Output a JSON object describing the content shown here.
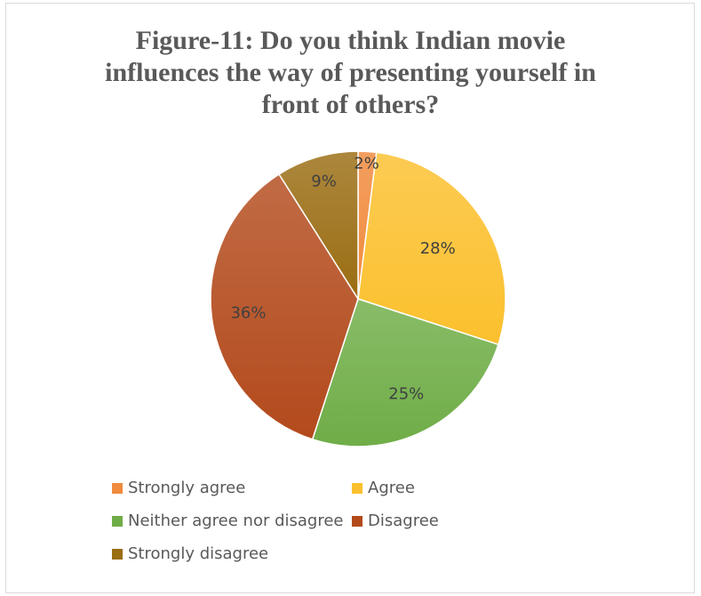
{
  "chart_data": {
    "type": "pie",
    "title_lines": [
      "Figure-11: Do you think Indian movie",
      "influences the way of presenting yourself in",
      "front of others?"
    ],
    "slices": [
      {
        "name": "Strongly agree",
        "value": 2,
        "label": "2%",
        "color": "#f08a3c"
      },
      {
        "name": "Agree",
        "value": 28,
        "label": "28%",
        "color": "#fbc02d"
      },
      {
        "name": "Neither agree nor disagree",
        "value": 25,
        "label": "25%",
        "color": "#6fad47"
      },
      {
        "name": "Disagree",
        "value": 36,
        "label": "36%",
        "color": "#b34a1c"
      },
      {
        "name": "Strongly disagree",
        "value": 9,
        "label": "9%",
        "color": "#9a6d12"
      }
    ],
    "legend_position": "bottom"
  }
}
